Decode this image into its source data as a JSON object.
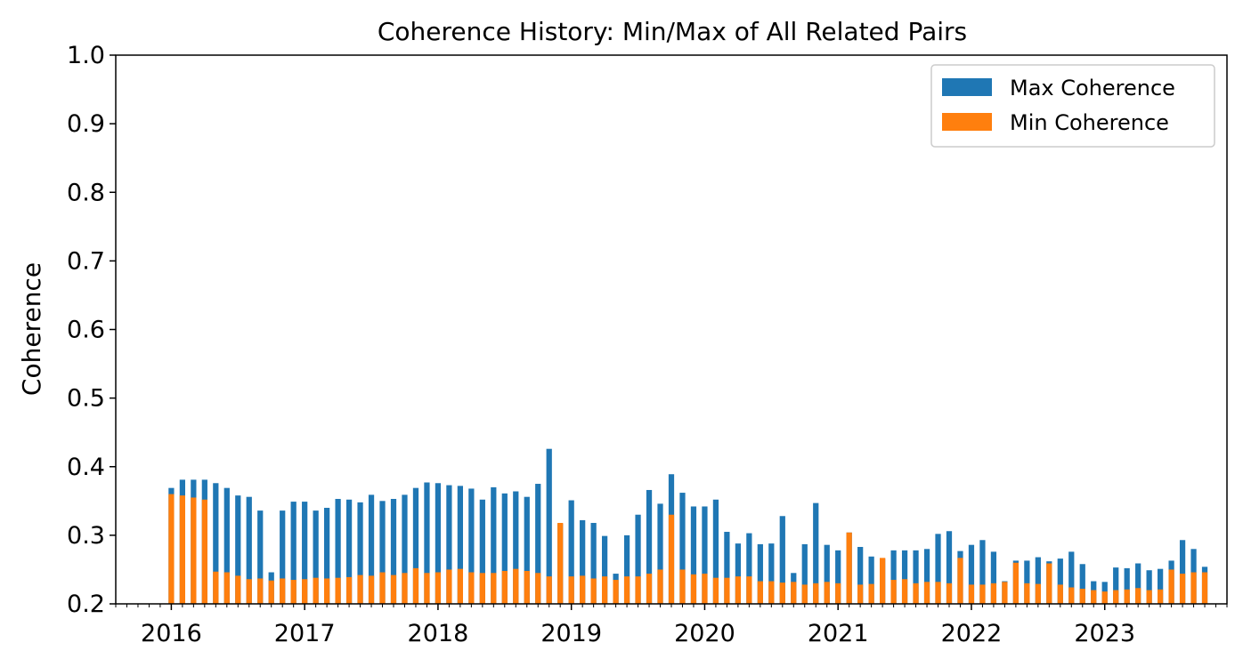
{
  "chart_data": {
    "type": "bar",
    "stacking": "overlay",
    "title": "Coherence History: Min/Max of All Related Pairs",
    "xlabel": "",
    "ylabel": "Coherence",
    "ylim": [
      0.2,
      1.0
    ],
    "y_ticks": [
      "0.2",
      "0.3",
      "0.4",
      "0.5",
      "0.6",
      "0.7",
      "0.8",
      "0.9",
      "1.0"
    ],
    "x_tick_labels": [
      "2016",
      "2017",
      "2018",
      "2019",
      "2020",
      "2021",
      "2022",
      "2023"
    ],
    "xlim": [
      "2015-08",
      "2023-12"
    ],
    "grid": false,
    "legend_position": "top-right",
    "legend": [
      "Max Coherence",
      "Min Coherence"
    ],
    "colors": {
      "max": "#1f77b4",
      "min": "#ff7f0e"
    },
    "x": [
      "2016-01",
      "2016-02",
      "2016-03",
      "2016-04",
      "2016-05",
      "2016-06",
      "2016-07",
      "2016-08",
      "2016-09",
      "2016-10",
      "2016-11",
      "2016-12",
      "2017-01",
      "2017-02",
      "2017-03",
      "2017-04",
      "2017-05",
      "2017-06",
      "2017-07",
      "2017-08",
      "2017-09",
      "2017-10",
      "2017-11",
      "2017-12",
      "2018-01",
      "2018-02",
      "2018-03",
      "2018-04",
      "2018-05",
      "2018-06",
      "2018-07",
      "2018-08",
      "2018-09",
      "2018-10",
      "2018-11",
      "2018-12",
      "2019-01",
      "2019-02",
      "2019-03",
      "2019-04",
      "2019-05",
      "2019-06",
      "2019-07",
      "2019-08",
      "2019-09",
      "2019-10",
      "2019-11",
      "2019-12",
      "2020-01",
      "2020-02",
      "2020-03",
      "2020-04",
      "2020-05",
      "2020-06",
      "2020-07",
      "2020-08",
      "2020-09",
      "2020-10",
      "2020-11",
      "2020-12",
      "2021-01",
      "2021-02",
      "2021-03",
      "2021-04",
      "2021-05",
      "2021-06",
      "2021-07",
      "2021-08",
      "2021-09",
      "2021-10",
      "2021-11",
      "2021-12",
      "2022-01",
      "2022-02",
      "2022-03",
      "2022-04",
      "2022-05",
      "2022-06",
      "2022-07",
      "2022-08",
      "2022-09",
      "2022-10",
      "2022-11",
      "2022-12",
      "2023-01",
      "2023-02",
      "2023-03",
      "2023-04",
      "2023-05",
      "2023-06",
      "2023-07",
      "2023-08",
      "2023-09",
      "2023-10"
    ],
    "series": [
      {
        "name": "Max Coherence",
        "values": [
          0.369,
          0.381,
          0.381,
          0.381,
          0.376,
          0.369,
          0.358,
          0.356,
          0.336,
          0.246,
          0.336,
          0.349,
          0.349,
          0.336,
          0.34,
          0.353,
          0.352,
          0.348,
          0.359,
          0.35,
          0.353,
          0.359,
          0.369,
          0.377,
          0.376,
          0.373,
          0.372,
          0.368,
          0.352,
          0.37,
          0.361,
          0.364,
          0.356,
          0.375,
          0.426,
          0.317,
          0.351,
          0.322,
          0.318,
          0.299,
          0.244,
          0.3,
          0.33,
          0.366,
          0.346,
          0.389,
          0.362,
          0.342,
          0.342,
          0.352,
          0.305,
          0.288,
          0.303,
          0.287,
          0.288,
          0.328,
          0.245,
          0.287,
          0.347,
          0.286,
          0.278,
          0.304,
          0.283,
          0.269,
          0.266,
          0.278,
          0.278,
          0.278,
          0.28,
          0.302,
          0.306,
          0.277,
          0.286,
          0.293,
          0.276,
          0.233,
          0.263,
          0.263,
          0.268,
          0.262,
          0.266,
          0.276,
          0.258,
          0.233,
          0.232,
          0.253,
          0.252,
          0.259,
          0.249,
          0.251,
          0.263,
          0.293,
          0.28,
          0.254
        ]
      },
      {
        "name": "Min Coherence",
        "values": [
          0.36,
          0.358,
          0.355,
          0.352,
          0.247,
          0.246,
          0.241,
          0.236,
          0.237,
          0.234,
          0.237,
          0.235,
          0.236,
          0.238,
          0.237,
          0.238,
          0.239,
          0.242,
          0.241,
          0.246,
          0.242,
          0.245,
          0.252,
          0.245,
          0.246,
          0.25,
          0.251,
          0.246,
          0.245,
          0.245,
          0.248,
          0.251,
          0.248,
          0.245,
          0.24,
          0.318,
          0.24,
          0.241,
          0.237,
          0.24,
          0.235,
          0.24,
          0.24,
          0.244,
          0.25,
          0.33,
          0.25,
          0.243,
          0.244,
          0.238,
          0.238,
          0.24,
          0.24,
          0.233,
          0.233,
          0.231,
          0.232,
          0.228,
          0.23,
          0.232,
          0.23,
          0.304,
          0.228,
          0.229,
          0.267,
          0.235,
          0.236,
          0.23,
          0.232,
          0.232,
          0.23,
          0.267,
          0.228,
          0.228,
          0.23,
          0.232,
          0.26,
          0.23,
          0.229,
          0.259,
          0.228,
          0.224,
          0.222,
          0.22,
          0.218,
          0.22,
          0.221,
          0.223,
          0.22,
          0.221,
          0.25,
          0.244,
          0.246,
          0.246
        ]
      }
    ]
  }
}
